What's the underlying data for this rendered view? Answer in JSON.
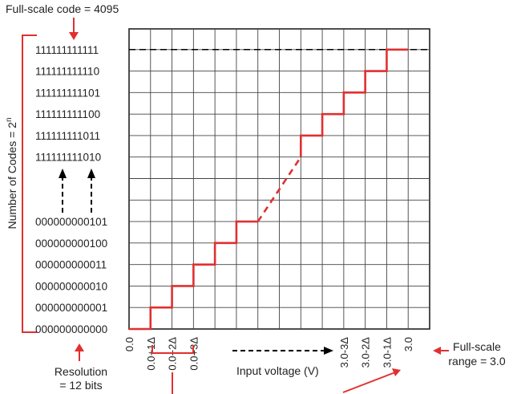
{
  "title": "",
  "annotations": {
    "full_scale_code": "Full-scale code = 4095",
    "number_of_codes": "Number of Codes = 2",
    "number_of_codes_exp": "n",
    "resolution_line1": "Resolution",
    "resolution_line2": "= 12 bits",
    "full_scale_range_line1": "Full-scale",
    "full_scale_range_line2": "range = 3.0",
    "input_voltage": "Input voltage (V)"
  },
  "chart_data": {
    "type": "line",
    "title": "",
    "xlabel": "Input voltage (V)",
    "ylabel": "Number of Codes = 2^n",
    "x_tick_labels": [
      "0.0",
      "0.0+1Δ",
      "0.0+2Δ",
      "0.0+3Δ",
      "3.0-3Δ",
      "3.0-2Δ",
      "3.0-1Δ",
      "3.0"
    ],
    "y_tick_labels": [
      "111111111111",
      "111111111110",
      "111111111101",
      "111111111100",
      "111111111011",
      "111111111010",
      "000000000101",
      "000000000100",
      "000000000011",
      "000000000010",
      "000000000001",
      "000000000000"
    ],
    "grid": true,
    "series": [
      {
        "color": "#e03030",
        "segments": [
          {
            "style": "solid",
            "points": [
              [
                0,
                0
              ],
              [
                1,
                0
              ],
              [
                1,
                1
              ],
              [
                2,
                1
              ],
              [
                2,
                2
              ],
              [
                3,
                2
              ],
              [
                3,
                3
              ],
              [
                4,
                3
              ],
              [
                4,
                4
              ],
              [
                5,
                4
              ],
              [
                5,
                5
              ],
              [
                6,
                5
              ]
            ]
          },
          {
            "style": "dashed",
            "points": [
              [
                6,
                5
              ],
              [
                8,
                8
              ]
            ]
          },
          {
            "style": "solid",
            "points": [
              [
                8,
                8
              ],
              [
                8,
                9
              ],
              [
                9,
                9
              ],
              [
                9,
                10
              ],
              [
                10,
                10
              ],
              [
                10,
                11
              ],
              [
                11,
                11
              ],
              [
                11,
                12
              ],
              [
                12,
                12
              ],
              [
                12,
                13
              ],
              [
                13,
                13
              ]
            ]
          }
        ]
      }
    ],
    "full_scale_code_line": {
      "value": "111111111111",
      "style": "dashed",
      "color": "#000000"
    }
  },
  "colors": {
    "accent": "#e03030",
    "grid": "#444444",
    "text": "#222222"
  }
}
